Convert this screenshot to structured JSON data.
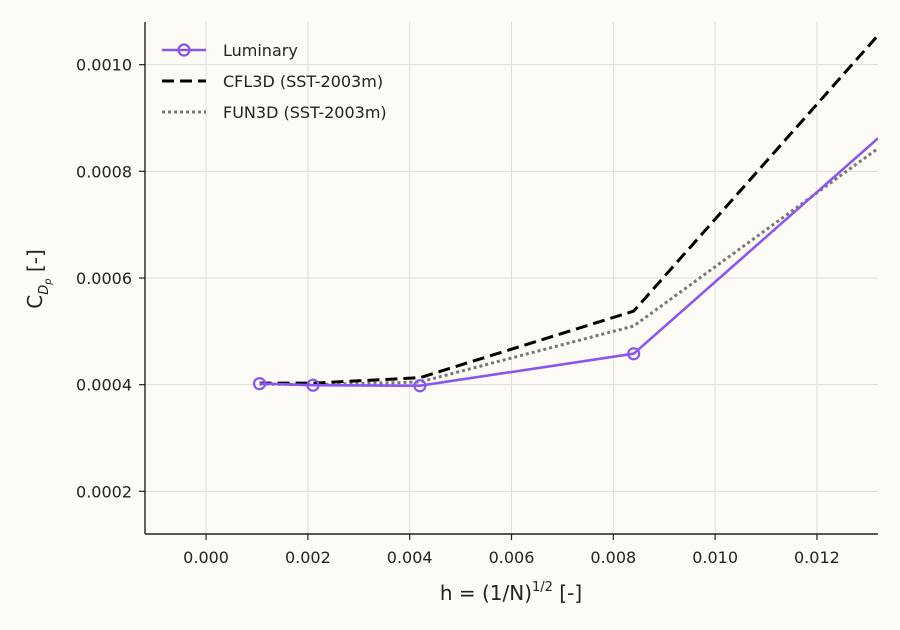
{
  "chart_data": {
    "type": "line",
    "xlabel": "h = (1/N)",
    "xlabel_sup": "1/2",
    "xlabel_suffix": " [-]",
    "ylabel": "C",
    "ylabel_sub": "D",
    "ylabel_subsub": "p",
    "ylabel_suffix": " [-]",
    "xlim": [
      -0.0012,
      0.0132
    ],
    "ylim": [
      0.00012,
      0.00108
    ],
    "x_ticks": [
      0.0,
      0.002,
      0.004,
      0.006,
      0.008,
      0.01,
      0.012
    ],
    "x_tick_labels": [
      "0.000",
      "0.002",
      "0.004",
      "0.006",
      "0.008",
      "0.010",
      "0.012"
    ],
    "y_ticks": [
      0.0002,
      0.0004,
      0.0006,
      0.0008,
      0.001
    ],
    "y_tick_labels": [
      "0.0002",
      "0.0004",
      "0.0006",
      "0.0008",
      "0.0010"
    ],
    "grid": true,
    "legend_position": "top-left",
    "series": [
      {
        "name": "Luminary",
        "color": "#8b55f0",
        "style": "solid-circle-markers",
        "x": [
          0.00105,
          0.0021,
          0.0042,
          0.0084,
          0.0132
        ],
        "y": [
          0.000402,
          0.000399,
          0.000398,
          0.000458,
          0.000862
        ]
      },
      {
        "name": "CFL3D (SST-2003m)",
        "color": "#000000",
        "style": "dashed",
        "x": [
          0.00105,
          0.0021,
          0.0042,
          0.0084,
          0.0132
        ],
        "y": [
          0.000403,
          0.000403,
          0.000413,
          0.000538,
          0.001055
        ]
      },
      {
        "name": "FUN3D (SST-2003m)",
        "color": "#777777",
        "style": "dotted",
        "x": [
          0.00105,
          0.0021,
          0.0042,
          0.0084,
          0.0132
        ],
        "y": [
          0.000401,
          0.0004,
          0.000405,
          0.00051,
          0.000843
        ]
      }
    ]
  }
}
